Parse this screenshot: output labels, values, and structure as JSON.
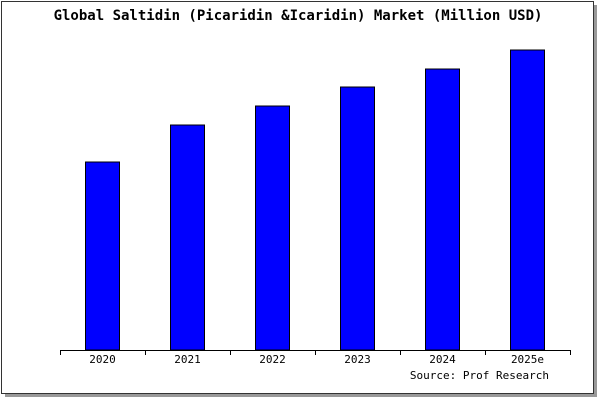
{
  "chart_data": {
    "type": "bar",
    "title": "Global Saltidin (Picaridin &Icaridin) Market (Million USD)",
    "categories": [
      "2020",
      "2021",
      "2022",
      "2023",
      "2024",
      "2025e"
    ],
    "values": [
      188,
      225,
      244,
      263,
      281,
      300
    ],
    "color": "#0000ff",
    "source": "Source: Prof Research"
  }
}
